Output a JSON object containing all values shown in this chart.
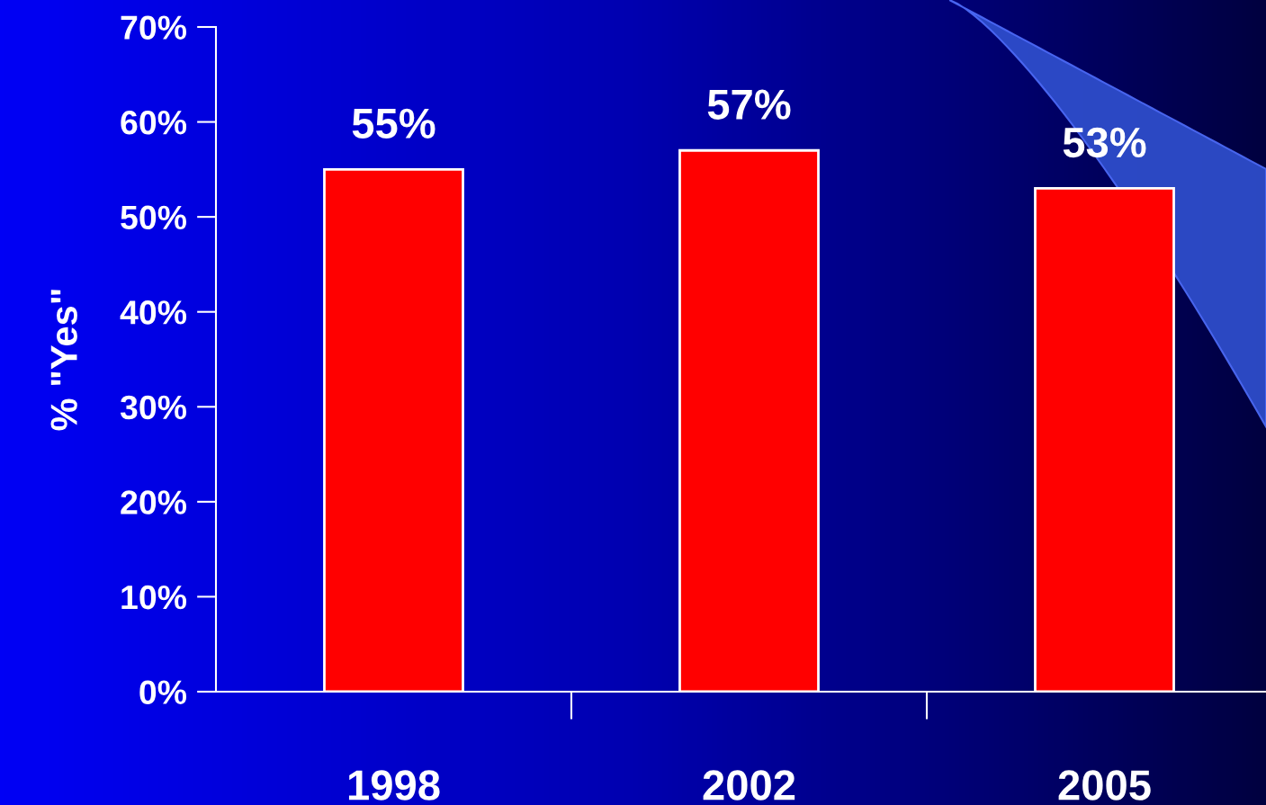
{
  "chart_data": {
    "type": "bar",
    "ylabel": "% \"Yes\"",
    "categories": [
      "1998",
      "2002",
      "2005"
    ],
    "values": [
      55,
      57,
      53
    ],
    "color": "#ff0000",
    "value_labels": [
      "55%",
      "57%",
      "53%"
    ],
    "ylim": [
      0,
      70
    ],
    "yticks": [
      {
        "value": 0,
        "label": "0%"
      },
      {
        "value": 10,
        "label": "10%"
      },
      {
        "value": 20,
        "label": "20%"
      },
      {
        "value": 30,
        "label": "30%"
      },
      {
        "value": 40,
        "label": "40%"
      },
      {
        "value": 50,
        "label": "50%"
      },
      {
        "value": 60,
        "label": "60%"
      },
      {
        "value": 70,
        "label": "70%"
      }
    ],
    "grid": false,
    "legend": false
  }
}
